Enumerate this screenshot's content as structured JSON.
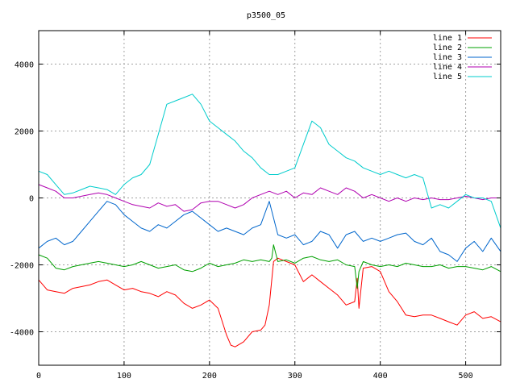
{
  "chart_data": {
    "type": "line",
    "title": "p3500_05",
    "xlabel": "",
    "ylabel": "",
    "xlim": [
      0,
      541
    ],
    "ylim": [
      -5000,
      5000
    ],
    "xticks": [
      0,
      100,
      200,
      300,
      400,
      500
    ],
    "yticks": [
      -4000,
      -2000,
      0,
      2000,
      4000
    ],
    "grid": true,
    "legend_position": "top-right",
    "series": [
      {
        "name": "line 1",
        "color": "#ff0000",
        "x": [
          0,
          10,
          20,
          30,
          40,
          50,
          60,
          70,
          80,
          90,
          100,
          110,
          120,
          130,
          140,
          150,
          160,
          170,
          180,
          190,
          200,
          210,
          220,
          225,
          230,
          240,
          250,
          260,
          265,
          270,
          275,
          280,
          290,
          300,
          310,
          320,
          330,
          340,
          350,
          360,
          370,
          373,
          375,
          380,
          390,
          400,
          410,
          420,
          430,
          440,
          450,
          460,
          470,
          480,
          490,
          500,
          510,
          520,
          530,
          541
        ],
        "y": [
          -2450,
          -2750,
          -2800,
          -2850,
          -2700,
          -2650,
          -2600,
          -2500,
          -2450,
          -2600,
          -2750,
          -2700,
          -2800,
          -2850,
          -2950,
          -2800,
          -2900,
          -3150,
          -3300,
          -3200,
          -3050,
          -3300,
          -4100,
          -4400,
          -4450,
          -4300,
          -4000,
          -3950,
          -3800,
          -3200,
          -1900,
          -1800,
          -1900,
          -2000,
          -2500,
          -2300,
          -2500,
          -2700,
          -2900,
          -3200,
          -3100,
          -2400,
          -3300,
          -2100,
          -2050,
          -2200,
          -2800,
          -3100,
          -3500,
          -3550,
          -3500,
          -3500,
          -3600,
          -3700,
          -3800,
          -3500,
          -3400,
          -3600,
          -3550,
          -3700
        ]
      },
      {
        "name": "line 2",
        "color": "#00a000",
        "x": [
          0,
          10,
          20,
          30,
          40,
          50,
          60,
          70,
          80,
          90,
          100,
          110,
          120,
          130,
          140,
          150,
          160,
          170,
          180,
          190,
          200,
          210,
          220,
          230,
          240,
          250,
          260,
          270,
          273,
          275,
          280,
          290,
          300,
          310,
          320,
          330,
          340,
          350,
          360,
          370,
          373,
          375,
          380,
          390,
          400,
          410,
          420,
          430,
          440,
          450,
          460,
          470,
          480,
          490,
          500,
          510,
          520,
          530,
          541
        ],
        "y": [
          -1700,
          -1800,
          -2100,
          -2150,
          -2050,
          -2000,
          -1950,
          -1900,
          -1950,
          -2000,
          -2050,
          -2000,
          -1900,
          -2000,
          -2100,
          -2050,
          -2000,
          -2150,
          -2200,
          -2100,
          -1950,
          -2050,
          -2000,
          -1950,
          -1850,
          -1900,
          -1850,
          -1900,
          -1800,
          -1400,
          -1900,
          -1850,
          -1950,
          -1800,
          -1750,
          -1850,
          -1900,
          -1850,
          -2000,
          -2050,
          -2700,
          -2200,
          -1900,
          -2000,
          -2050,
          -2000,
          -2050,
          -1950,
          -2000,
          -2050,
          -2050,
          -2000,
          -2100,
          -2050,
          -2050,
          -2100,
          -2150,
          -2050,
          -2200
        ]
      },
      {
        "name": "line 3",
        "color": "#0066cc",
        "x": [
          0,
          10,
          20,
          30,
          40,
          50,
          60,
          70,
          80,
          90,
          100,
          110,
          120,
          130,
          140,
          150,
          160,
          170,
          180,
          190,
          200,
          210,
          220,
          230,
          240,
          250,
          260,
          270,
          280,
          290,
          300,
          310,
          320,
          330,
          340,
          350,
          360,
          370,
          380,
          390,
          400,
          410,
          420,
          430,
          440,
          450,
          460,
          470,
          480,
          490,
          500,
          510,
          520,
          530,
          541
        ],
        "y": [
          -1500,
          -1300,
          -1200,
          -1400,
          -1300,
          -1000,
          -700,
          -400,
          -100,
          -200,
          -500,
          -700,
          -900,
          -1000,
          -800,
          -900,
          -700,
          -500,
          -400,
          -600,
          -800,
          -1000,
          -900,
          -1000,
          -1100,
          -900,
          -800,
          -100,
          -1100,
          -1200,
          -1100,
          -1400,
          -1300,
          -1000,
          -1100,
          -1500,
          -1100,
          -1000,
          -1300,
          -1200,
          -1300,
          -1200,
          -1100,
          -1050,
          -1300,
          -1400,
          -1200,
          -1600,
          -1700,
          -1900,
          -1500,
          -1300,
          -1600,
          -1200,
          -1600
        ]
      },
      {
        "name": "line 4",
        "color": "#b000b0",
        "x": [
          0,
          10,
          20,
          30,
          40,
          50,
          60,
          70,
          80,
          90,
          100,
          110,
          120,
          130,
          140,
          150,
          160,
          170,
          180,
          190,
          200,
          210,
          220,
          230,
          240,
          250,
          260,
          270,
          280,
          290,
          300,
          310,
          320,
          330,
          340,
          350,
          360,
          370,
          380,
          390,
          400,
          410,
          420,
          430,
          440,
          450,
          460,
          470,
          480,
          490,
          500,
          510,
          520,
          530,
          541
        ],
        "y": [
          400,
          300,
          200,
          0,
          0,
          50,
          100,
          150,
          100,
          0,
          -100,
          -200,
          -250,
          -300,
          -150,
          -250,
          -200,
          -400,
          -350,
          -150,
          -100,
          -100,
          -200,
          -300,
          -200,
          0,
          100,
          200,
          100,
          200,
          0,
          150,
          100,
          300,
          200,
          100,
          300,
          200,
          0,
          100,
          0,
          -100,
          0,
          -100,
          0,
          -50,
          0,
          -50,
          -50,
          0,
          50,
          0,
          -50,
          0,
          0
        ]
      },
      {
        "name": "line 5",
        "color": "#00cccc",
        "x": [
          0,
          10,
          20,
          30,
          40,
          50,
          60,
          70,
          80,
          90,
          100,
          110,
          120,
          130,
          140,
          150,
          160,
          170,
          180,
          190,
          200,
          210,
          220,
          230,
          240,
          250,
          260,
          270,
          280,
          290,
          300,
          310,
          320,
          330,
          340,
          350,
          360,
          370,
          380,
          390,
          400,
          410,
          420,
          430,
          440,
          450,
          460,
          470,
          480,
          490,
          500,
          510,
          520,
          530,
          541
        ],
        "y": [
          800,
          700,
          400,
          100,
          150,
          250,
          350,
          300,
          250,
          100,
          400,
          600,
          700,
          1000,
          1900,
          2800,
          2900,
          3000,
          3100,
          2800,
          2300,
          2100,
          1900,
          1700,
          1400,
          1200,
          900,
          700,
          700,
          800,
          900,
          1600,
          2300,
          2100,
          1600,
          1400,
          1200,
          1100,
          900,
          800,
          700,
          800,
          700,
          600,
          700,
          600,
          -300,
          -200,
          -300,
          -100,
          100,
          0,
          0,
          -100,
          -900
        ]
      }
    ]
  }
}
